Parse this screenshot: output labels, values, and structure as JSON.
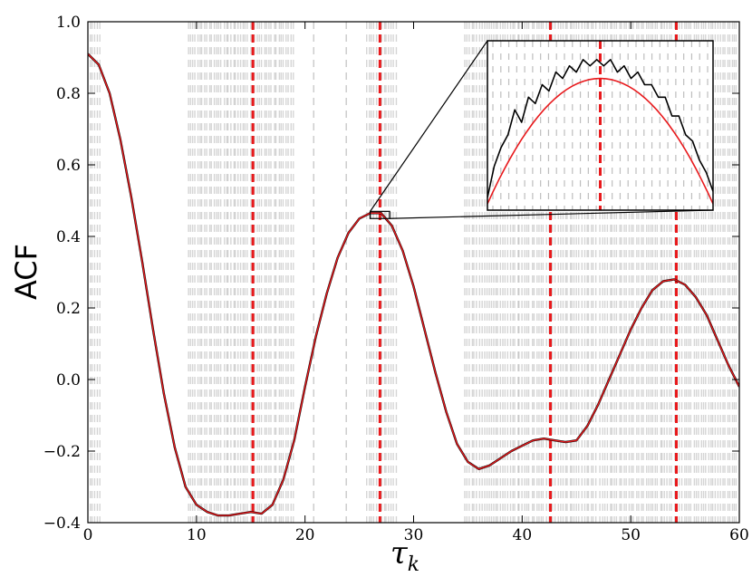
{
  "chart_data": {
    "type": "line",
    "title": "",
    "xlabel": "τ",
    "xlabel_sub": "k",
    "ylabel": "ACF",
    "xlim": [
      0,
      60
    ],
    "ylim": [
      -0.4,
      1.0
    ],
    "xticks": [
      0,
      10,
      20,
      30,
      40,
      50,
      60
    ],
    "yticks": [
      1.0,
      0.8,
      0.6,
      0.4,
      0.2,
      0.0,
      -0.2,
      -0.4
    ],
    "ytick_labels": [
      "1.0",
      "0.8",
      "0.6",
      "0.4",
      "0.2",
      "0.0",
      "−0.2",
      "−0.4"
    ],
    "grid": false,
    "legend": "none",
    "series": [
      {
        "color": "#000000",
        "x": [
          0,
          1,
          2,
          3,
          4,
          5,
          6,
          7,
          8,
          9,
          10,
          11,
          12,
          13,
          14,
          15,
          16,
          17,
          18,
          19,
          20,
          21,
          22,
          23,
          24,
          25,
          26,
          27,
          28,
          29,
          30,
          31,
          32,
          33,
          34,
          35,
          36,
          37,
          38,
          39,
          40,
          41,
          42,
          43,
          44,
          45,
          46,
          47,
          48,
          49,
          50,
          51,
          52,
          53,
          54,
          55,
          56,
          57,
          58,
          59,
          60
        ],
        "y": [
          0.91,
          0.88,
          0.8,
          0.67,
          0.51,
          0.33,
          0.14,
          -0.04,
          -0.19,
          -0.3,
          -0.35,
          -0.37,
          -0.38,
          -0.38,
          -0.375,
          -0.37,
          -0.375,
          -0.35,
          -0.28,
          -0.17,
          -0.02,
          0.12,
          0.24,
          0.34,
          0.41,
          0.45,
          0.465,
          0.465,
          0.43,
          0.36,
          0.26,
          0.14,
          0.02,
          -0.09,
          -0.18,
          -0.23,
          -0.25,
          -0.24,
          -0.22,
          -0.2,
          -0.185,
          -0.17,
          -0.165,
          -0.17,
          -0.175,
          -0.17,
          -0.13,
          -0.07,
          0.0,
          0.07,
          0.14,
          0.2,
          0.25,
          0.275,
          0.28,
          0.265,
          0.23,
          0.18,
          0.11,
          0.04,
          -0.02
        ]
      },
      {
        "color": "#e8191c",
        "x": [
          0,
          1,
          2,
          3,
          4,
          5,
          6,
          7,
          8,
          9,
          10,
          11,
          12,
          13,
          14,
          15,
          16,
          17,
          18,
          19,
          20,
          21,
          22,
          23,
          24,
          25,
          26,
          27,
          28,
          29,
          30,
          31,
          32,
          33,
          34,
          35,
          36,
          37,
          38,
          39,
          40,
          41,
          42,
          43,
          44,
          45,
          46,
          47,
          48,
          49,
          50,
          51,
          52,
          53,
          54,
          55,
          56,
          57,
          58,
          59,
          60
        ],
        "y": [
          0.91,
          0.88,
          0.8,
          0.67,
          0.51,
          0.33,
          0.14,
          -0.04,
          -0.19,
          -0.3,
          -0.35,
          -0.37,
          -0.38,
          -0.38,
          -0.375,
          -0.37,
          -0.375,
          -0.35,
          -0.28,
          -0.17,
          -0.02,
          0.12,
          0.24,
          0.34,
          0.41,
          0.45,
          0.465,
          0.465,
          0.43,
          0.36,
          0.26,
          0.14,
          0.02,
          -0.09,
          -0.18,
          -0.23,
          -0.25,
          -0.24,
          -0.22,
          -0.2,
          -0.185,
          -0.17,
          -0.165,
          -0.17,
          -0.175,
          -0.17,
          -0.13,
          -0.07,
          0.0,
          0.07,
          0.14,
          0.2,
          0.25,
          0.275,
          0.28,
          0.265,
          0.23,
          0.18,
          0.11,
          0.04,
          -0.02
        ]
      }
    ],
    "vertical_markers_red": [
      15.2,
      26.9,
      42.6,
      54.2
    ],
    "gray_dash_bands": [
      [
        0,
        1.2
      ],
      [
        9,
        19
      ],
      [
        25.5,
        28.5
      ],
      [
        34.5,
        47
      ],
      [
        47,
        60
      ]
    ],
    "gray_dash_single": [
      20.8,
      23.8
    ],
    "zoom_box": {
      "x": [
        26,
        27.8
      ],
      "y": [
        0.45,
        0.47
      ]
    },
    "inset": {
      "x_range": [
        26,
        27.8
      ],
      "y_range": [
        0.445,
        0.472
      ],
      "black_y": [
        0.447,
        0.452,
        0.455,
        0.457,
        0.461,
        0.459,
        0.463,
        0.462,
        0.465,
        0.464,
        0.467,
        0.466,
        0.468,
        0.467,
        0.469,
        0.468,
        0.469,
        0.468,
        0.469,
        0.467,
        0.468,
        0.466,
        0.467,
        0.465,
        0.465,
        0.463,
        0.463,
        0.46,
        0.46,
        0.457,
        0.456,
        0.453,
        0.451,
        0.448
      ],
      "red_peak": 0.466,
      "red_base": 0.446
    }
  }
}
